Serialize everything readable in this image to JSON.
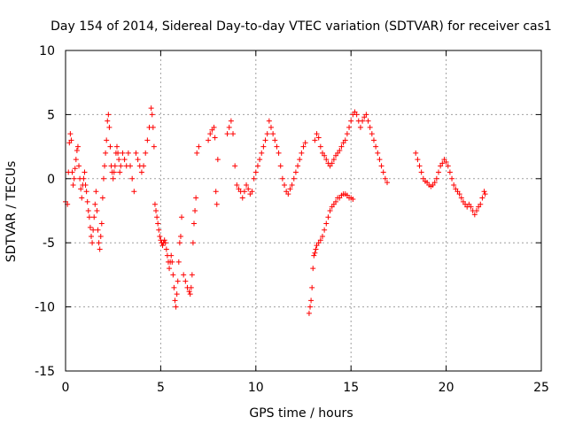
{
  "chart_data": {
    "type": "scatter",
    "title": "Day 154 of 2014, Sidereal Day-to-day VTEC variation (SDTVAR) for receiver cas1",
    "xlabel": "GPS time / hours",
    "ylabel": "SDTVAR / TECUs",
    "xlim": [
      0,
      25
    ],
    "ylim": [
      -15,
      10
    ],
    "xticks": [
      0,
      5,
      10,
      15,
      20,
      25
    ],
    "yticks": [
      -15,
      -10,
      -5,
      0,
      5,
      10
    ],
    "grid": true,
    "marker": "+",
    "color": "#ff0000",
    "series": [
      {
        "name": "SDTVAR",
        "x": [
          0.0,
          0.1,
          0.15,
          0.2,
          0.25,
          0.3,
          0.35,
          0.4,
          0.45,
          0.5,
          0.55,
          0.6,
          0.65,
          0.7,
          0.75,
          0.8,
          0.85,
          0.9,
          0.95,
          1.0,
          1.05,
          1.1,
          1.15,
          1.2,
          1.25,
          1.3,
          1.35,
          1.4,
          1.45,
          1.5,
          1.55,
          1.6,
          1.65,
          1.7,
          1.75,
          1.8,
          1.85,
          1.9,
          1.95,
          2.0,
          2.05,
          2.1,
          2.15,
          2.2,
          2.25,
          2.3,
          2.35,
          2.4,
          2.45,
          2.5,
          2.55,
          2.6,
          2.65,
          2.7,
          2.75,
          2.8,
          2.85,
          2.9,
          3.0,
          3.1,
          3.2,
          3.3,
          3.4,
          3.5,
          3.6,
          3.7,
          3.8,
          3.9,
          4.0,
          4.1,
          4.2,
          4.3,
          4.4,
          4.5,
          4.55,
          4.6,
          4.65,
          4.7,
          4.75,
          4.8,
          4.85,
          4.9,
          4.95,
          5.0,
          5.05,
          5.1,
          5.15,
          5.2,
          5.25,
          5.3,
          5.35,
          5.4,
          5.45,
          5.5,
          5.55,
          5.6,
          5.65,
          5.7,
          5.75,
          5.8,
          5.85,
          5.9,
          5.95,
          6.0,
          6.05,
          6.1,
          6.2,
          6.3,
          6.4,
          6.5,
          6.55,
          6.6,
          6.65,
          6.7,
          6.75,
          6.8,
          6.85,
          6.9,
          7.0,
          7.5,
          7.6,
          7.7,
          7.8,
          7.85,
          7.9,
          7.95,
          8.0,
          8.5,
          8.6,
          8.7,
          8.8,
          8.9,
          9.0,
          9.1,
          9.2,
          9.3,
          9.4,
          9.5,
          9.6,
          9.7,
          9.8,
          9.9,
          10.0,
          10.1,
          10.2,
          10.3,
          10.4,
          10.5,
          10.6,
          10.7,
          10.8,
          10.9,
          11.0,
          11.1,
          11.2,
          11.3,
          11.4,
          11.5,
          11.6,
          11.7,
          11.8,
          11.9,
          12.0,
          12.1,
          12.2,
          12.3,
          12.4,
          12.5,
          12.6,
          12.8,
          12.85,
          12.9,
          12.95,
          13.0,
          13.05,
          13.1,
          13.15,
          13.2,
          13.3,
          13.4,
          13.5,
          13.6,
          13.7,
          13.8,
          13.9,
          14.0,
          14.1,
          14.2,
          14.3,
          14.4,
          14.5,
          14.6,
          14.7,
          14.8,
          14.9,
          15.0,
          15.1,
          13.1,
          13.2,
          13.3,
          13.4,
          13.5,
          13.6,
          13.7,
          13.8,
          13.9,
          14.0,
          14.1,
          14.2,
          14.3,
          14.4,
          14.5,
          14.6,
          14.7,
          14.8,
          14.9,
          15.0,
          15.1,
          15.2,
          15.3,
          15.4,
          15.5,
          15.6,
          15.7,
          15.8,
          15.9,
          16.0,
          16.1,
          16.2,
          16.3,
          16.4,
          16.5,
          16.6,
          16.7,
          16.8,
          16.9,
          18.4,
          18.5,
          18.6,
          18.7,
          18.8,
          18.9,
          19.0,
          19.1,
          19.2,
          19.3,
          19.4,
          19.5,
          19.6,
          19.7,
          19.8,
          19.9,
          20.0,
          20.1,
          20.2,
          20.3,
          20.4,
          20.5,
          20.6,
          20.7,
          20.8,
          20.9,
          21.0,
          21.1,
          21.2,
          21.3,
          21.4,
          21.5,
          21.6,
          21.7,
          21.8,
          21.9,
          22.0,
          22.05
        ],
        "y": [
          -1.8,
          -2.0,
          0.5,
          2.8,
          3.5,
          3.0,
          0.5,
          -0.5,
          0.0,
          0.8,
          1.5,
          2.2,
          2.5,
          1.0,
          0.0,
          -0.8,
          -1.5,
          -0.5,
          0.0,
          0.5,
          -0.5,
          -1.0,
          -1.8,
          -2.5,
          -3.0,
          -3.8,
          -4.5,
          -5.0,
          -4.0,
          -3.0,
          -2.0,
          -1.0,
          -2.5,
          -4.0,
          -5.0,
          -5.5,
          -4.5,
          -3.5,
          -1.5,
          0.0,
          1.0,
          2.0,
          3.0,
          4.5,
          5.0,
          4.0,
          2.5,
          1.0,
          0.5,
          0.0,
          0.5,
          1.0,
          2.0,
          2.5,
          2.0,
          1.5,
          0.5,
          1.0,
          2.0,
          1.5,
          1.0,
          2.0,
          1.0,
          0.0,
          -1.0,
          2.0,
          1.5,
          1.0,
          0.5,
          1.0,
          2.0,
          3.0,
          4.0,
          5.5,
          5.0,
          4.0,
          2.5,
          -2.0,
          -2.5,
          -3.0,
          -3.5,
          -4.0,
          -4.5,
          -4.8,
          -5.0,
          -5.2,
          -5.0,
          -4.8,
          -5.0,
          -5.5,
          -6.0,
          -6.5,
          -7.0,
          -6.5,
          -6.0,
          -6.5,
          -7.5,
          -8.5,
          -9.5,
          -10.0,
          -9.0,
          -8.0,
          -6.5,
          -5.0,
          -4.5,
          -3.0,
          -7.5,
          -8.0,
          -8.5,
          -8.8,
          -9.0,
          -8.5,
          -7.5,
          -5.0,
          -3.5,
          -2.5,
          -1.5,
          2.0,
          2.5,
          3.0,
          3.5,
          3.8,
          4.0,
          3.2,
          -1.0,
          -2.0,
          1.5,
          3.5,
          4.0,
          4.5,
          3.5,
          1.0,
          -0.5,
          -0.8,
          -1.0,
          -1.5,
          -1.0,
          -0.5,
          -0.8,
          -1.2,
          -1.0,
          0.0,
          0.5,
          1.0,
          1.5,
          2.0,
          2.5,
          3.0,
          3.5,
          4.5,
          4.0,
          3.5,
          3.0,
          2.5,
          2.0,
          1.0,
          0.0,
          -0.5,
          -1.0,
          -1.2,
          -0.8,
          -0.5,
          0.0,
          0.5,
          1.0,
          1.5,
          2.0,
          2.5,
          2.8,
          -10.5,
          -10.0,
          -9.5,
          -8.5,
          -7.0,
          -6.0,
          -5.8,
          -5.5,
          -5.2,
          -5.0,
          -4.8,
          -4.5,
          -4.0,
          -3.5,
          -3.0,
          -2.5,
          -2.2,
          -2.0,
          -1.8,
          -1.5,
          -1.5,
          -1.3,
          -1.2,
          -1.2,
          -1.3,
          -1.5,
          -1.5,
          -1.6,
          3.0,
          3.5,
          3.2,
          2.5,
          2.0,
          1.8,
          1.5,
          1.2,
          1.0,
          1.2,
          1.5,
          1.8,
          2.0,
          2.2,
          2.5,
          2.8,
          3.0,
          3.5,
          4.0,
          4.5,
          5.0,
          5.2,
          5.0,
          4.5,
          4.0,
          4.5,
          4.8,
          5.0,
          4.5,
          4.0,
          3.5,
          3.0,
          2.5,
          2.0,
          1.5,
          1.0,
          0.5,
          0.0,
          -0.3,
          2.0,
          1.5,
          1.0,
          0.5,
          0.0,
          -0.2,
          -0.3,
          -0.5,
          -0.6,
          -0.5,
          -0.3,
          0.0,
          0.5,
          1.0,
          1.2,
          1.5,
          1.3,
          1.0,
          0.5,
          0.0,
          -0.5,
          -0.8,
          -1.0,
          -1.2,
          -1.5,
          -1.8,
          -2.0,
          -2.2,
          -2.0,
          -2.2,
          -2.5,
          -2.8,
          -2.5,
          -2.2,
          -2.0,
          -1.5,
          -1.0,
          -1.2
        ]
      }
    ]
  }
}
